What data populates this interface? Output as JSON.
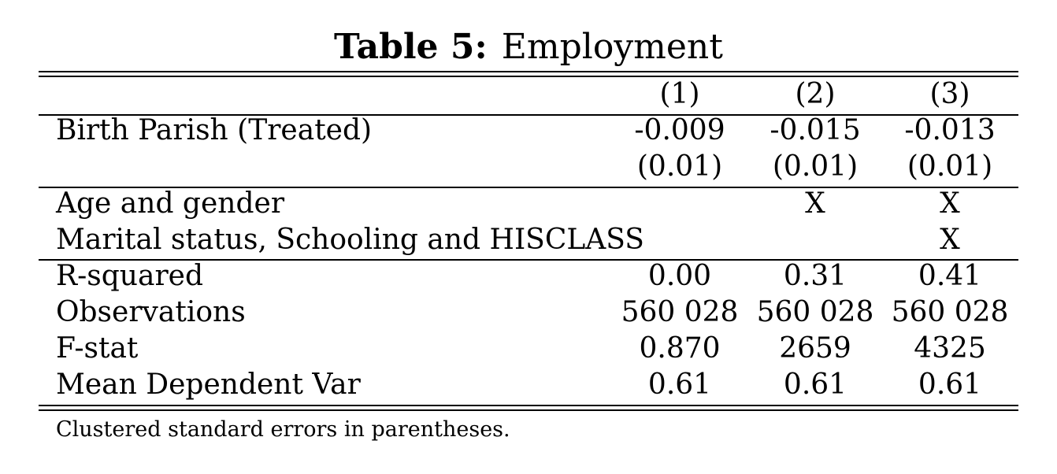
{
  "caption": {
    "label": "Table 5:",
    "title": "Employment"
  },
  "header": {
    "col1": "(1)",
    "col2": "(2)",
    "col3": "(3)"
  },
  "rows": [
    {
      "label": "Birth Parish (Treated)",
      "c1": "-0.009",
      "c2": "-0.015",
      "c3": "-0.013"
    },
    {
      "label": "",
      "c1": "(0.01)",
      "c2": "(0.01)",
      "c3": "(0.01)"
    },
    {
      "label": "Age and gender",
      "c1": "",
      "c2": "X",
      "c3": "X"
    },
    {
      "label": "Marital status, Schooling and HISCLASS",
      "c1": "",
      "c2": "",
      "c3": "X"
    },
    {
      "label": "R-squared",
      "c1": "0.00",
      "c2": "0.31",
      "c3": "0.41"
    },
    {
      "label": "Observations",
      "c1": "560 028",
      "c2": "560 028",
      "c3": "560 028"
    },
    {
      "label": "F-stat",
      "c1": "0.870",
      "c2": "2659",
      "c3": "4325"
    },
    {
      "label": "Mean Dependent Var",
      "c1": "0.61",
      "c2": "0.61",
      "c3": "0.61"
    }
  ],
  "note": "Clustered standard errors in parentheses."
}
